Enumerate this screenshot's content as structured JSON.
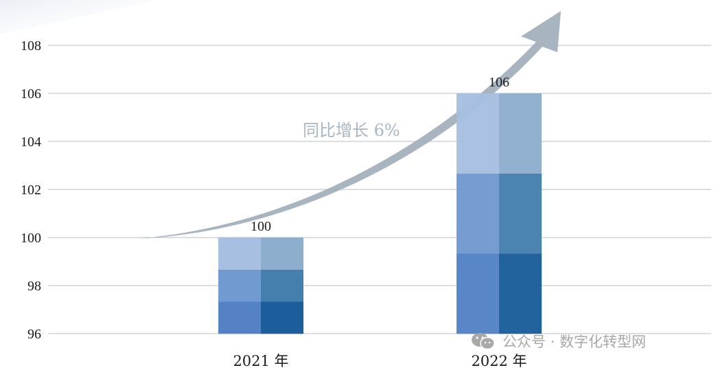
{
  "chart_data": {
    "type": "bar",
    "categories": [
      "2021 年",
      "2022 年"
    ],
    "values": [
      100,
      106
    ],
    "data_labels": [
      "100",
      "106"
    ],
    "ylim": [
      96,
      108
    ],
    "yticks": [
      96,
      98,
      100,
      102,
      104,
      106,
      108
    ],
    "grid": true,
    "annotation": "同比增长 6%",
    "colors": {
      "left_column": [
        "#5482c5",
        "#719ad0",
        "#a7bfe0"
      ],
      "right_column": [
        "#1b5e9b",
        "#457fae",
        "#8eaecd"
      ],
      "arrow": "#a3b0bc",
      "grid": "#b8bfc6"
    }
  },
  "watermark": {
    "icon": "wechat-icon",
    "text": "公众号 · 数字化转型网"
  }
}
